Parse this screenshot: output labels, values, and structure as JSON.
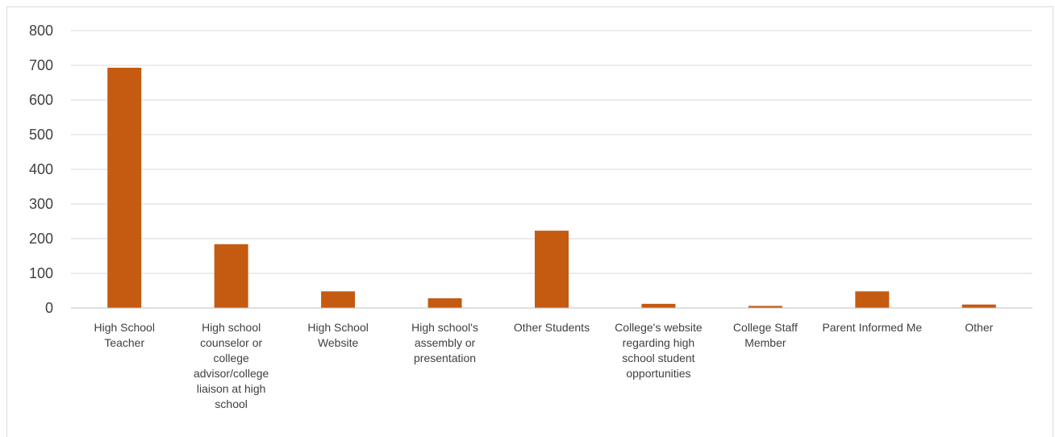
{
  "chart_data": {
    "type": "bar",
    "title": "",
    "xlabel": "",
    "ylabel": "",
    "categories": [
      "High School Teacher",
      "High school counselor or college advisor/college liaison at high school",
      "High School Website",
      "High school's assembly or presentation",
      "Other Students",
      "College's website regarding high school student opportunities",
      "College Staff Member",
      "Parent Informed Me",
      "Other"
    ],
    "series": [
      {
        "values": [
          693,
          184,
          48,
          28,
          223,
          12,
          6,
          48,
          10
        ]
      }
    ],
    "ylim": [
      0,
      800
    ],
    "yticks": [
      0,
      100,
      200,
      300,
      400,
      500,
      600,
      700,
      800
    ],
    "grid": true,
    "legend": "none",
    "colors": {
      "bar": "#c55a11",
      "grid": "#d9d9d9",
      "axis": "#bfbfbf",
      "text": "#404040"
    }
  }
}
